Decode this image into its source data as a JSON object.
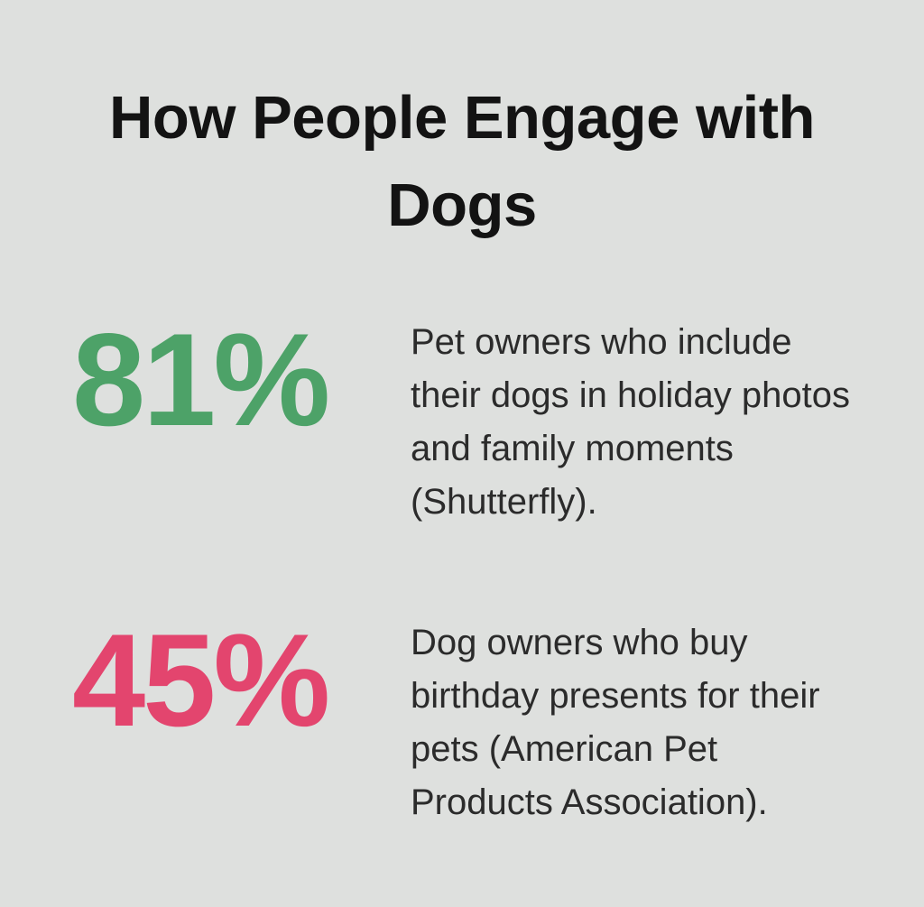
{
  "page": {
    "title": "How People Engage with Dogs",
    "background_color": "#dee0de",
    "title_color": "#131313",
    "text_color": "#2b2b2b"
  },
  "stats": [
    {
      "value": "81%",
      "color": "#4da268",
      "description": "Pet owners who include their dogs in holiday photos and family moments (Shutterfly)."
    },
    {
      "value": "45%",
      "color": "#e3456e",
      "description": "Dog owners who buy birthday presents for their pets (American Pet Products Association)."
    }
  ],
  "chart_data": {
    "type": "table",
    "title": "How People Engage with Dogs",
    "categories": [
      "Pet owners who include their dogs in holiday photos and family moments (Shutterfly).",
      "Dog owners who buy birthday presents for their pets (American Pet Products Association)."
    ],
    "values": [
      81,
      45
    ],
    "value_labels": [
      "81%",
      "45%"
    ],
    "colors": [
      "#4da268",
      "#e3456e"
    ],
    "legend": "none",
    "grid": false
  }
}
